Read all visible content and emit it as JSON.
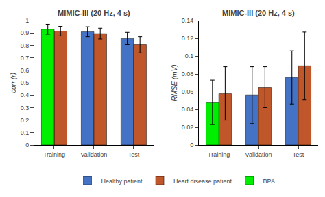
{
  "chart_data": [
    {
      "type": "bar",
      "title": "MIMIC-III (20 Hz, 4 s)",
      "categories": [
        "Training",
        "Validation",
        "Test"
      ],
      "ylabel": "corr (r)",
      "ylim": [
        0,
        1.0
      ],
      "yticks": [
        0,
        0.1,
        0.2,
        0.3,
        0.4,
        0.5,
        0.6,
        0.7,
        0.8,
        0.9,
        1
      ],
      "grid": false,
      "series": [
        {
          "name": "Healthy patient",
          "color": "#4472C4",
          "values": [
            null,
            0.91,
            0.855
          ],
          "errors": [
            null,
            0.04,
            0.05
          ]
        },
        {
          "name": "Heart disease patient",
          "color": "#C0572A",
          "values": [
            0.915,
            0.895,
            0.805
          ],
          "errors": [
            0.038,
            0.043,
            0.065
          ]
        },
        {
          "name": "BPA",
          "color": "#00EE00",
          "values": [
            0.93,
            null,
            null
          ],
          "errors": [
            0.04,
            null,
            null
          ]
        }
      ]
    },
    {
      "type": "bar",
      "title": "MIMIC-III (20 Hz, 4 s)",
      "categories": [
        "Training",
        "Validation",
        "Test"
      ],
      "ylabel": "RMSE (mV)",
      "ylim": [
        0,
        0.14
      ],
      "yticks": [
        0,
        0.02,
        0.04,
        0.06,
        0.08,
        0.1,
        0.12,
        0.14
      ],
      "grid": false,
      "legend": "bottom",
      "series": [
        {
          "name": "Healthy patient",
          "color": "#4472C4",
          "values": [
            null,
            0.056,
            0.076
          ],
          "errors": [
            null,
            0.032,
            0.03
          ]
        },
        {
          "name": "Heart disease patient",
          "color": "#C0572A",
          "values": [
            0.058,
            0.065,
            0.089
          ],
          "errors": [
            0.03,
            0.023,
            0.038
          ]
        },
        {
          "name": "BPA",
          "color": "#00EE00",
          "values": [
            0.048,
            null,
            null
          ],
          "errors": [
            0.025,
            null,
            null
          ]
        }
      ]
    }
  ]
}
